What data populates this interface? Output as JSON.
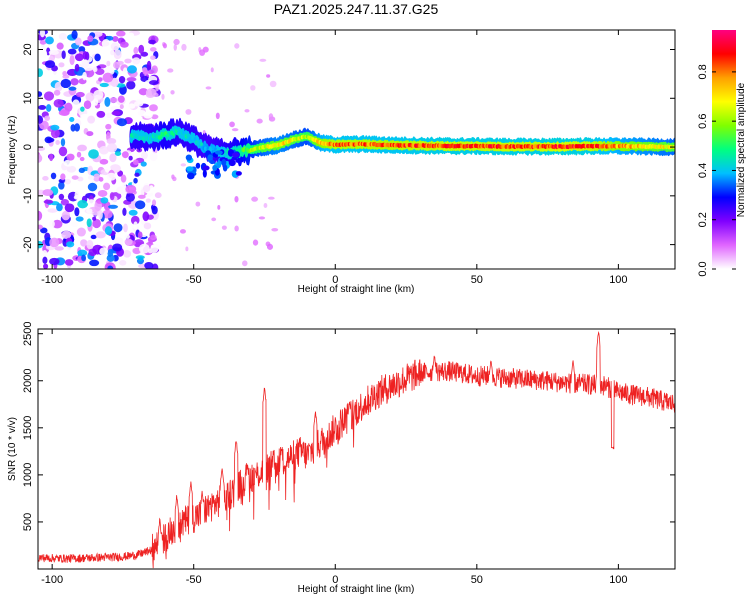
{
  "figure": {
    "title": "PAZ1.2025.247.11.37.G25"
  },
  "chart_data": [
    {
      "type": "heatmap",
      "xlabel": "Height of straight line (km)",
      "ylabel": "Frequency (Hz)",
      "xlim": [
        -105,
        120
      ],
      "ylim": [
        -25,
        24
      ],
      "xticks": [
        -100,
        -50,
        0,
        50,
        100
      ],
      "yticks": [
        -20,
        -10,
        0,
        10,
        20
      ],
      "colorbar": {
        "label": "Normalized spectral amplitude",
        "range": [
          0,
          0.97
        ],
        "ticks": [
          0,
          0.2,
          0.4,
          0.6,
          0.8
        ],
        "tick_labels": [
          "0.0",
          "0.2",
          "0.4",
          "0.6",
          "0.8"
        ],
        "colormap": [
          "#ffffff",
          "#e066ff",
          "#8000ff",
          "#0000ff",
          "#00bfff",
          "#00ff80",
          "#80ff00",
          "#ffff00",
          "#ffa000",
          "#ff0000",
          "#ff0080"
        ]
      },
      "ridge": {
        "x": [
          -72,
          -65,
          -60,
          -55,
          -50,
          -45,
          -40,
          -35,
          -30,
          -25,
          -20,
          -15,
          -10,
          -5,
          0,
          10,
          20,
          30,
          40,
          50,
          60,
          70,
          80,
          90,
          100,
          110,
          120
        ],
        "freq": [
          2.2,
          2.0,
          2.5,
          3.2,
          1.5,
          -0.5,
          -1.2,
          -1.0,
          -0.6,
          0.0,
          0.4,
          1.5,
          2.2,
          0.8,
          0.5,
          0.6,
          0.4,
          0.3,
          0.2,
          0.2,
          0.1,
          0.1,
          0.1,
          0.2,
          0.2,
          0.1,
          0.0
        ],
        "amplitude": [
          0.45,
          0.45,
          0.5,
          0.45,
          0.45,
          0.4,
          0.45,
          0.5,
          0.6,
          0.7,
          0.75,
          0.7,
          0.65,
          0.8,
          0.85,
          0.85,
          0.85,
          0.87,
          0.88,
          0.88,
          0.88,
          0.88,
          0.9,
          0.88,
          0.8,
          0.75,
          0.7
        ]
      },
      "noise_region": {
        "x_range": [
          -105,
          -63
        ],
        "freq_range": [
          -25,
          24
        ]
      }
    },
    {
      "type": "line",
      "xlabel": "Height of straight line (km)",
      "ylabel": "SNR (10 * v/v)",
      "xlim": [
        -105,
        120
      ],
      "ylim": [
        0,
        2550
      ],
      "xticks": [
        -100,
        -50,
        0,
        50,
        100
      ],
      "yticks": [
        500,
        1000,
        1500,
        2000,
        2500
      ],
      "color": "#ee2222",
      "series": [
        {
          "x": [
            -105,
            -95,
            -85,
            -75,
            -70,
            -65,
            -62,
            -58,
            -55,
            -52,
            -48,
            -45,
            -42,
            -38,
            -35,
            -32,
            -28,
            -25,
            -22,
            -18,
            -15,
            -12,
            -10,
            -8,
            -5,
            -2,
            0,
            5,
            10,
            15,
            20,
            25,
            30,
            35,
            40,
            45,
            50,
            55,
            60,
            65,
            70,
            75,
            80,
            85,
            90,
            95,
            100,
            105,
            110,
            115,
            120
          ],
          "y": [
            120,
            110,
            120,
            130,
            150,
            200,
            280,
            400,
            480,
            520,
            580,
            650,
            700,
            780,
            850,
            950,
            1000,
            1050,
            1100,
            1150,
            1200,
            1250,
            1200,
            1270,
            1350,
            1420,
            1500,
            1620,
            1750,
            1870,
            1950,
            2020,
            2080,
            2100,
            2100,
            2080,
            2050,
            2050,
            2030,
            2020,
            2010,
            2000,
            1980,
            1970,
            1960,
            1950,
            1880,
            1850,
            1830,
            1790,
            1750
          ]
        }
      ],
      "spikes": [
        {
          "x": -62,
          "y": 550
        },
        {
          "x": -56,
          "y": 800
        },
        {
          "x": -51,
          "y": 950
        },
        {
          "x": -47,
          "y": 850
        },
        {
          "x": -40,
          "y": 1100
        },
        {
          "x": -35,
          "y": 1400
        },
        {
          "x": -31,
          "y": 1130
        },
        {
          "x": -25,
          "y": 1960
        },
        {
          "x": -19,
          "y": 1300
        },
        {
          "x": -7,
          "y": 1700
        },
        {
          "x": 5,
          "y": 1800
        },
        {
          "x": 35,
          "y": 2300
        },
        {
          "x": 55,
          "y": 2250
        },
        {
          "x": 84,
          "y": 2250
        },
        {
          "x": 93,
          "y": 2550
        },
        {
          "x": 98,
          "y": 1260
        }
      ]
    }
  ]
}
